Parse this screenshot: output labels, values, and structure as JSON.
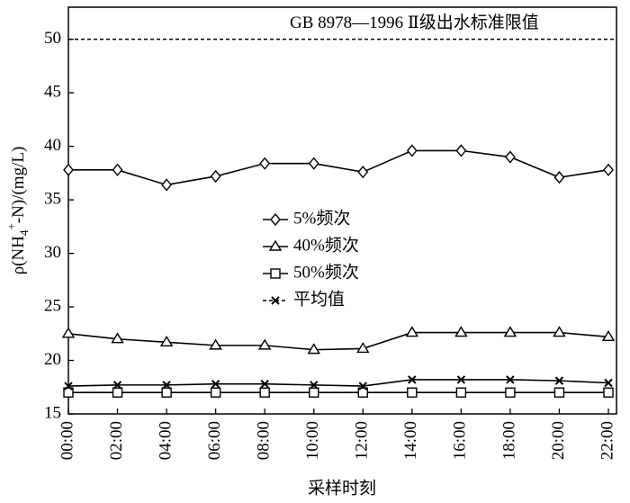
{
  "chart_data": {
    "type": "line",
    "ylabel_parts": [
      "ρ(NH",
      "4",
      "+",
      "-N)/(mg/L)"
    ],
    "xlabel": "采样时刻",
    "categories": [
      "00:00",
      "02:00",
      "04:00",
      "06:00",
      "08:00",
      "10:00",
      "12:00",
      "14:00",
      "16:00",
      "18:00",
      "20:00",
      "22:00"
    ],
    "series": [
      {
        "name": "5%频次",
        "marker": "diamond",
        "color": "#000",
        "values": [
          37.8,
          37.8,
          36.4,
          37.2,
          38.4,
          38.4,
          37.6,
          39.6,
          39.6,
          39.0,
          37.1,
          37.8
        ]
      },
      {
        "name": "40%频次",
        "marker": "triangle",
        "color": "#000",
        "values": [
          22.5,
          22.0,
          21.7,
          21.4,
          21.4,
          21.0,
          21.1,
          22.6,
          22.6,
          22.6,
          22.6,
          22.2
        ]
      },
      {
        "name": "50%频次",
        "marker": "square",
        "color": "#000",
        "values": [
          17.0,
          17.0,
          17.0,
          17.0,
          17.0,
          17.0,
          17.0,
          17.0,
          17.0,
          17.0,
          17.0,
          17.0
        ]
      },
      {
        "name": "平均值",
        "marker": "x",
        "color": "#000",
        "values": [
          17.6,
          17.7,
          17.7,
          17.8,
          17.8,
          17.7,
          17.6,
          18.2,
          18.2,
          18.2,
          18.1,
          17.9
        ]
      }
    ],
    "reference_line": {
      "value": 50,
      "label": "GB 8978—1996 Ⅱ级出水标准限值"
    },
    "ylim": [
      15,
      53
    ],
    "yticks": [
      15,
      20,
      25,
      30,
      35,
      40,
      45,
      50
    ]
  }
}
